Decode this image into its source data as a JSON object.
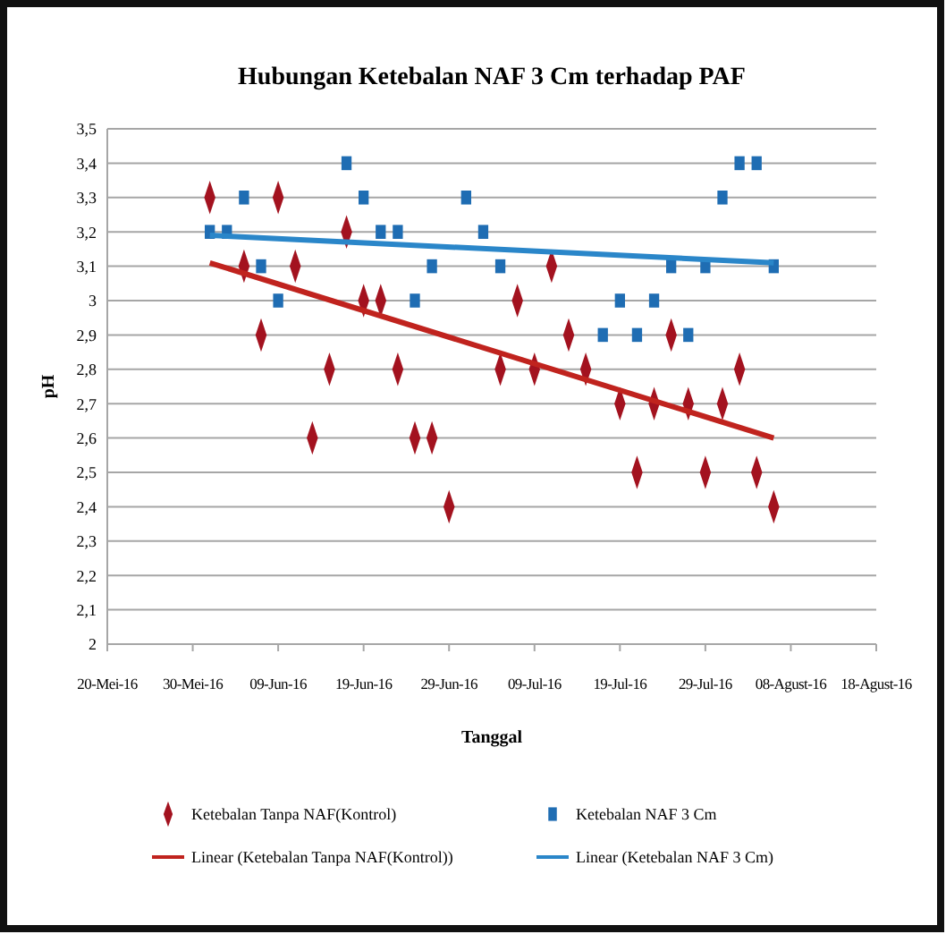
{
  "chart_data": {
    "type": "scatter",
    "title": "Hubungan Ketebalan NAF 3 Cm terhadap PAF",
    "xlabel": "Tanggal",
    "ylabel": "pH",
    "xlim": [
      "--05-20",
      "--08-18"
    ],
    "xticks": [
      {
        "value": "--05-20",
        "label": "20-Mei-16"
      },
      {
        "value": "--05-30",
        "label": "30-Mei-16"
      },
      {
        "value": "--06-09",
        "label": "09-Jun-16"
      },
      {
        "value": "--06-19",
        "label": "19-Jun-16"
      },
      {
        "value": "--06-29",
        "label": "29-Jun-16"
      },
      {
        "value": "--07-09",
        "label": "09-Jul-16"
      },
      {
        "value": "--07-19",
        "label": "19-Jul-16"
      },
      {
        "value": "--07-29",
        "label": "29-Jul-16"
      },
      {
        "value": "--08-08",
        "label": "08-Agust-16"
      },
      {
        "value": "--08-18",
        "label": "18-Agust-16"
      }
    ],
    "ylim": [
      2,
      3.5
    ],
    "yticks": [
      {
        "value": 2,
        "label": "2"
      },
      {
        "value": 2.1,
        "label": "2,1"
      },
      {
        "value": 2.2,
        "label": "2,2"
      },
      {
        "value": 2.3,
        "label": "2,3"
      },
      {
        "value": 2.4,
        "label": "2,4"
      },
      {
        "value": 2.5,
        "label": "2,5"
      },
      {
        "value": 2.6,
        "label": "2,6"
      },
      {
        "value": 2.7,
        "label": "2,7"
      },
      {
        "value": 2.8,
        "label": "2,8"
      },
      {
        "value": 2.9,
        "label": "2,9"
      },
      {
        "value": 3,
        "label": "3"
      },
      {
        "value": 3.1,
        "label": "3,1"
      },
      {
        "value": 3.2,
        "label": "3,2"
      },
      {
        "value": 3.3,
        "label": "3,3"
      },
      {
        "value": 3.4,
        "label": "3,4"
      },
      {
        "value": 3.5,
        "label": "3,5"
      }
    ],
    "grid": "y",
    "legend": "bottom",
    "series": [
      {
        "name": "Ketebalan Tanpa NAF(Kontrol)",
        "marker": "diamond",
        "color": "#a3121f",
        "x": [
          "--06-01",
          "--06-05",
          "--06-07",
          "--06-09",
          "--06-11",
          "--06-13",
          "--06-15",
          "--06-17",
          "--06-19",
          "--06-21",
          "--06-23",
          "--06-25",
          "--06-27",
          "--06-29",
          "--07-05",
          "--07-07",
          "--07-09",
          "--07-11",
          "--07-13",
          "--07-15",
          "--07-19",
          "--07-21",
          "--07-23",
          "--07-25",
          "--07-27",
          "--07-29",
          "--07-31",
          "--08-02",
          "--08-04",
          "--08-06"
        ],
        "values": [
          3.3,
          3.1,
          2.9,
          3.3,
          3.1,
          2.6,
          2.8,
          3.2,
          3.0,
          3.0,
          2.8,
          2.6,
          2.6,
          2.4,
          2.8,
          3.0,
          2.8,
          3.1,
          2.9,
          2.8,
          2.7,
          2.5,
          2.7,
          2.9,
          2.7,
          2.5,
          2.7,
          2.8,
          2.5,
          2.4
        ]
      },
      {
        "name": "Ketebalan NAF 3 Cm",
        "marker": "square",
        "color": "#1f6db3",
        "x": [
          "--06-01",
          "--06-03",
          "--06-05",
          "--06-07",
          "--06-09",
          "--06-17",
          "--06-19",
          "--06-21",
          "--06-23",
          "--06-25",
          "--06-27",
          "--07-01",
          "--07-03",
          "--07-05",
          "--07-17",
          "--07-19",
          "--07-21",
          "--07-23",
          "--07-25",
          "--07-27",
          "--07-29",
          "--07-31",
          "--08-02",
          "--08-04",
          "--08-06"
        ],
        "values": [
          3.2,
          3.2,
          3.3,
          3.1,
          3.0,
          3.4,
          3.3,
          3.2,
          3.2,
          3.0,
          3.1,
          3.3,
          3.2,
          3.1,
          2.9,
          3.0,
          2.9,
          3.0,
          3.1,
          2.9,
          3.1,
          3.3,
          3.4,
          3.4,
          3.1
        ]
      },
      {
        "name": "Linear (Ketebalan Tanpa NAF(Kontrol))",
        "type": "line",
        "marker": "none",
        "line_style": "solid",
        "color": "#c0231e",
        "x": [
          "--06-01",
          "--08-06"
        ],
        "values": [
          3.11,
          2.6
        ]
      },
      {
        "name": "Linear (Ketebalan NAF 3 Cm)",
        "type": "line",
        "marker": "none",
        "line_style": "solid",
        "color": "#2a86c9",
        "x": [
          "--06-01",
          "--08-06"
        ],
        "values": [
          3.19,
          3.11
        ]
      }
    ]
  }
}
